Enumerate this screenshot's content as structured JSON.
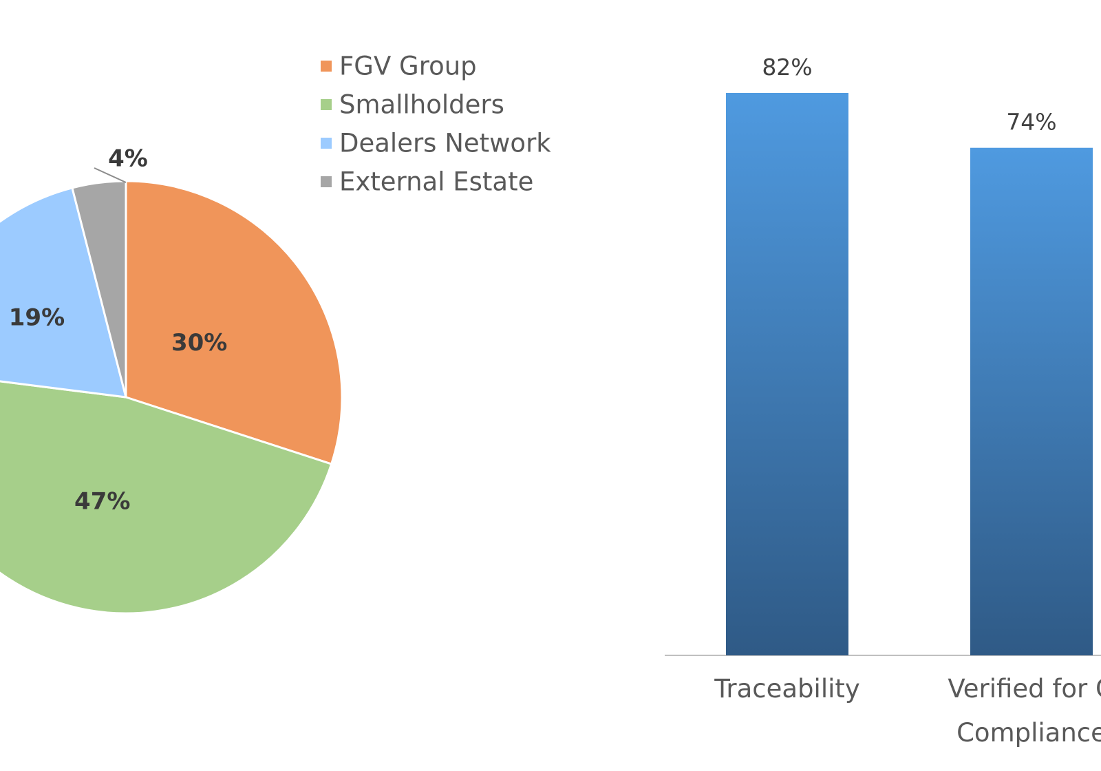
{
  "chart_data": [
    {
      "type": "pie",
      "legend_position": "top-right",
      "slices": [
        {
          "name": "FGV Group",
          "value": 30,
          "label": "30%",
          "color": "#f0955a"
        },
        {
          "name": "Smallholders",
          "value": 47,
          "label": "47%",
          "color": "#a6cf8a"
        },
        {
          "name": "Dealers Network",
          "value": 19,
          "label": "19%",
          "color": "#9ccbff"
        },
        {
          "name": "External Estate",
          "value": 4,
          "label": "4%",
          "color": "#a6a6a6"
        }
      ]
    },
    {
      "type": "bar",
      "ylim": [
        0,
        82
      ],
      "grid": false,
      "bar_color_top": "#4f9ae0",
      "bar_color_bottom": "#2f5a86",
      "categories": [
        {
          "lines": [
            "Traceability"
          ]
        },
        {
          "lines": [
            "Verified for G",
            "Compliance"
          ]
        }
      ],
      "values": [
        82,
        74
      ],
      "value_labels": [
        "82%",
        "74%"
      ]
    }
  ]
}
